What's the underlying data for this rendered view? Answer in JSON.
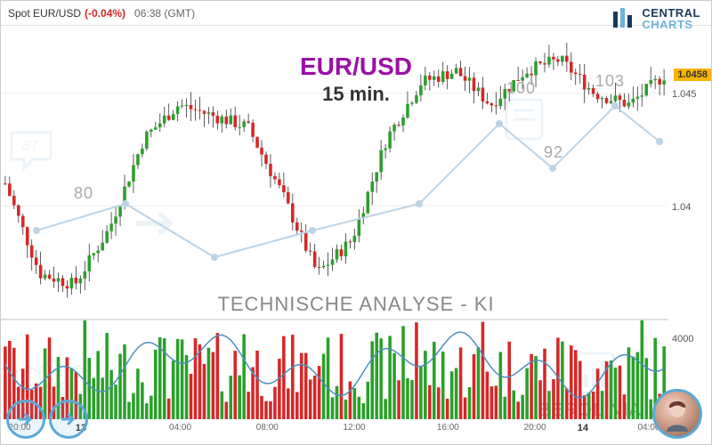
{
  "header": {
    "title": "Spot EUR/USD",
    "change_pct": "(-0.04%)",
    "change_color": "#d62727",
    "time": "06:38 (GMT)"
  },
  "logo": {
    "top": "CENTRAL",
    "bottom": "CHARTS"
  },
  "overlay": {
    "pair": "EUR/USD",
    "interval": "15 min."
  },
  "analysis_label": "TECHNISCHE  ANALYSE - KI",
  "wm_brand": "BEROLINIA",
  "wm_numbers": [
    "87",
    "80",
    "100",
    "92",
    "103"
  ],
  "chart": {
    "type": "candlestick",
    "background_color": "#ffffff",
    "grid_color": "#eeeeee",
    "yaxis": {
      "min": 1.035,
      "max": 1.048,
      "ticks": [
        1.04,
        1.045
      ],
      "labels": [
        "1.04",
        "1.045"
      ]
    },
    "last_price": {
      "value": "1.0458",
      "badge_bg": "#f7b500"
    },
    "candle_up_color": "#2aa02a",
    "candle_down_color": "#d62727",
    "wick_color": "#333333",
    "candle_width": 3.6,
    "candles_count": 150,
    "candles_seed": 7
  },
  "volume": {
    "type": "bar",
    "yaxis": {
      "max": 5000,
      "ticks": [
        4000
      ],
      "labels": [
        "4000"
      ]
    },
    "overlay_line_color": "#4a8fc2",
    "up_color": "#2aa02a",
    "down_color": "#d62727"
  },
  "time_axis": {
    "ticks": [
      {
        "x": 0.03,
        "label": "20:00"
      },
      {
        "x": 0.13,
        "label": "13",
        "day": true
      },
      {
        "x": 0.27,
        "label": "04:00"
      },
      {
        "x": 0.4,
        "label": "08:00"
      },
      {
        "x": 0.53,
        "label": "12:00"
      },
      {
        "x": 0.67,
        "label": "16:00"
      },
      {
        "x": 0.8,
        "label": "20:00"
      },
      {
        "x": 0.88,
        "label": "14",
        "day": true
      },
      {
        "x": 0.97,
        "label": "04:00"
      }
    ]
  },
  "colors": {
    "accent": "#5aa9d6",
    "watermark": "#bcd4e6"
  }
}
